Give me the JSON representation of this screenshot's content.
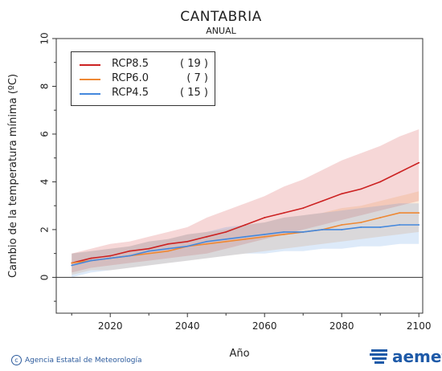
{
  "title": "CANTABRIA",
  "subtitle": "ANUAL",
  "footer": "Agencia Estatal de Meteorología",
  "logo_text": "aemet",
  "colors": {
    "rcp85": "#cc2222",
    "rcp60": "#ee8833",
    "rcp45": "#4488dd"
  },
  "legend": [
    {
      "name": "RCP8.5",
      "count": "( 19 )",
      "color": "#cc2222"
    },
    {
      "name": "RCP6.0",
      "count": "(   7 )",
      "color": "#ee8833"
    },
    {
      "name": "RCP4.5",
      "count": "( 15 )",
      "color": "#4488dd"
    }
  ],
  "chart_data": {
    "type": "line",
    "xlabel": "Año",
    "ylabel": "Cambio de la temperatura mínima (ºC)",
    "xlim": [
      2006,
      2101
    ],
    "ylim": [
      -1.5,
      10
    ],
    "xticks": [
      2020,
      2040,
      2060,
      2080,
      2100
    ],
    "yticks": [
      0,
      2,
      4,
      6,
      8,
      10
    ],
    "x": [
      2010,
      2015,
      2020,
      2025,
      2030,
      2035,
      2040,
      2045,
      2050,
      2055,
      2060,
      2065,
      2070,
      2075,
      2080,
      2085,
      2090,
      2095,
      2100
    ],
    "series": [
      {
        "name": "RCP8.5",
        "color": "#cc2222",
        "values": [
          0.6,
          0.8,
          0.9,
          1.1,
          1.2,
          1.4,
          1.5,
          1.7,
          1.9,
          2.2,
          2.5,
          2.7,
          2.9,
          3.2,
          3.5,
          3.7,
          4.0,
          4.4,
          4.8
        ],
        "lower": [
          0.2,
          0.4,
          0.5,
          0.6,
          0.7,
          0.8,
          0.9,
          1.0,
          1.2,
          1.4,
          1.6,
          1.8,
          2.0,
          2.2,
          2.4,
          2.6,
          2.8,
          3.0,
          3.2
        ],
        "upper": [
          1.0,
          1.2,
          1.4,
          1.5,
          1.7,
          1.9,
          2.1,
          2.5,
          2.8,
          3.1,
          3.4,
          3.8,
          4.1,
          4.5,
          4.9,
          5.2,
          5.5,
          5.9,
          6.2
        ]
      },
      {
        "name": "RCP6.0",
        "color": "#ee8833",
        "values": [
          0.6,
          0.7,
          0.8,
          0.9,
          1.0,
          1.1,
          1.3,
          1.4,
          1.5,
          1.6,
          1.7,
          1.8,
          1.9,
          2.0,
          2.2,
          2.3,
          2.5,
          2.7,
          2.7
        ],
        "lower": [
          0.1,
          0.3,
          0.3,
          0.4,
          0.5,
          0.6,
          0.7,
          0.8,
          0.9,
          1.0,
          1.1,
          1.2,
          1.3,
          1.4,
          1.5,
          1.6,
          1.7,
          1.8,
          1.9
        ],
        "upper": [
          1.0,
          1.1,
          1.2,
          1.3,
          1.5,
          1.6,
          1.8,
          1.9,
          2.0,
          2.2,
          2.3,
          2.5,
          2.6,
          2.7,
          2.9,
          3.0,
          3.2,
          3.4,
          3.6
        ]
      },
      {
        "name": "RCP4.5",
        "color": "#4488dd",
        "values": [
          0.5,
          0.7,
          0.8,
          0.9,
          1.1,
          1.2,
          1.3,
          1.5,
          1.6,
          1.7,
          1.8,
          1.9,
          1.9,
          2.0,
          2.0,
          2.1,
          2.1,
          2.2,
          2.2
        ],
        "lower": [
          0.0,
          0.2,
          0.3,
          0.4,
          0.5,
          0.6,
          0.7,
          0.8,
          0.9,
          1.0,
          1.0,
          1.1,
          1.1,
          1.2,
          1.2,
          1.3,
          1.3,
          1.4,
          1.4
        ],
        "upper": [
          1.0,
          1.1,
          1.2,
          1.3,
          1.5,
          1.6,
          1.8,
          1.9,
          2.1,
          2.2,
          2.3,
          2.5,
          2.6,
          2.7,
          2.8,
          2.9,
          3.0,
          3.1,
          3.1
        ]
      }
    ]
  }
}
